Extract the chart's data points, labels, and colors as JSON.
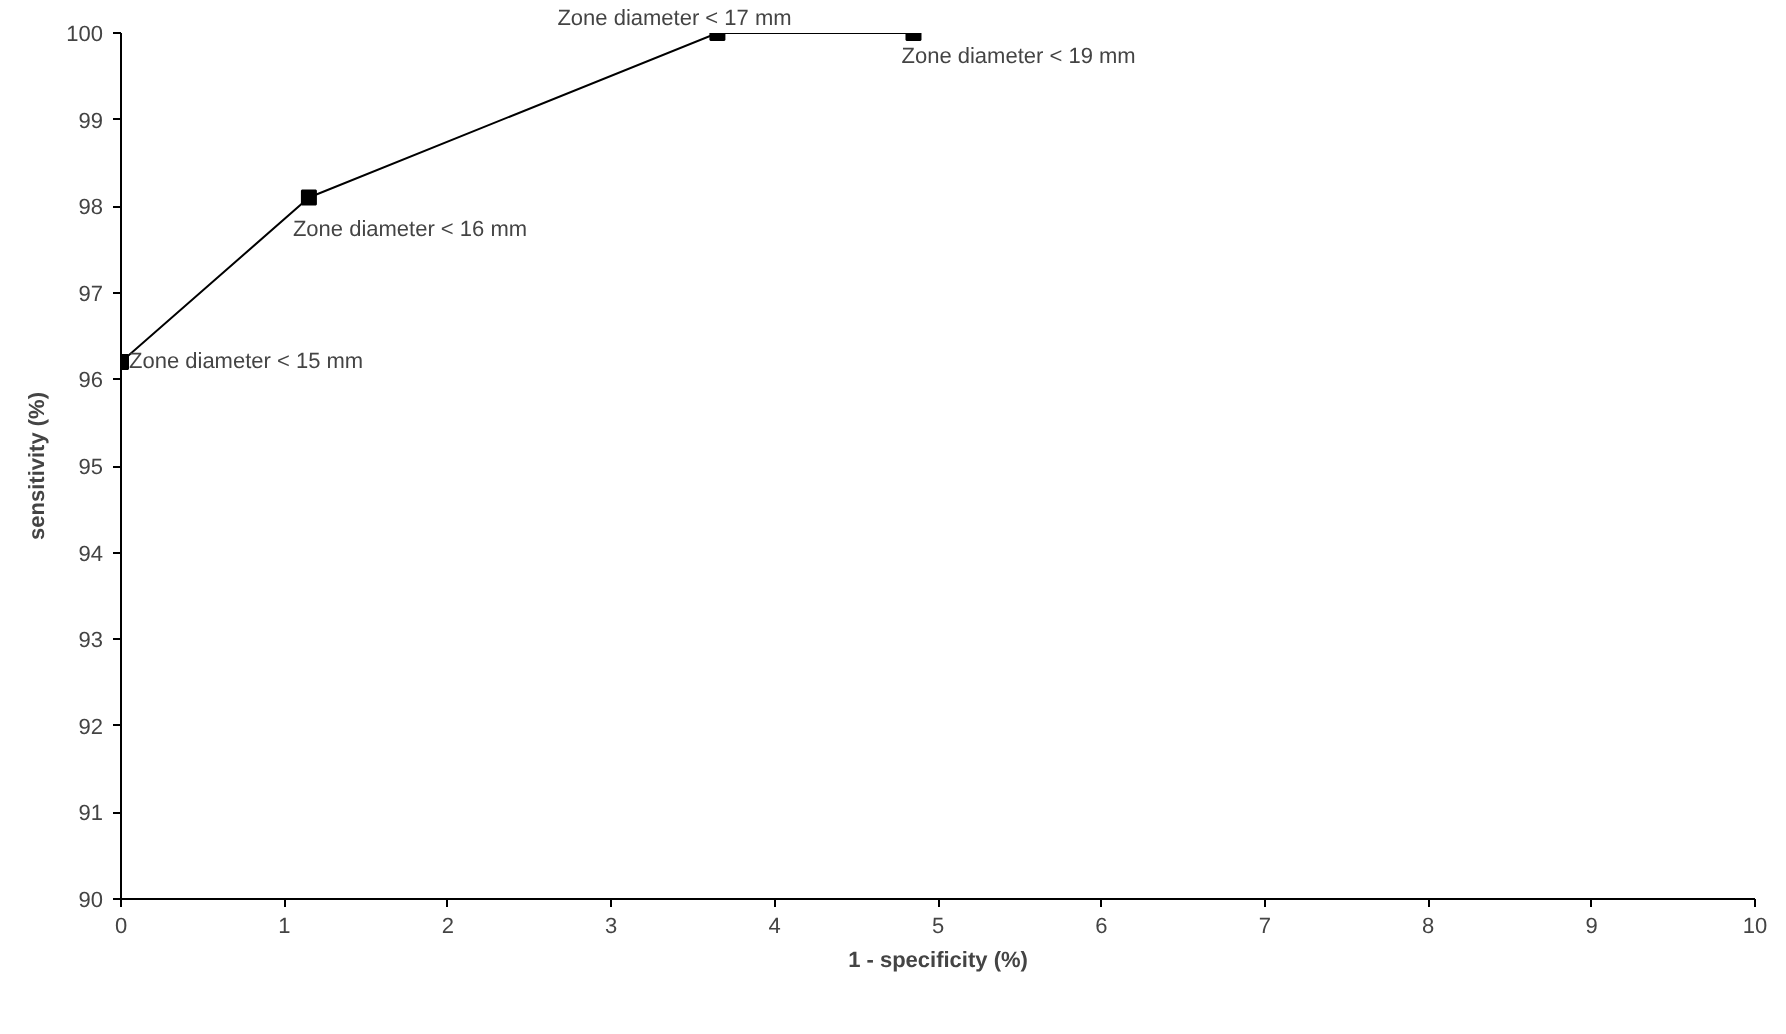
{
  "chart_data": {
    "type": "line",
    "xlabel": "1 - specificity (%)",
    "ylabel": "sensitivity (%)",
    "x": [
      0,
      1.15,
      3.65,
      4.85
    ],
    "series": [
      {
        "color": "#000000",
        "values": [
          96.2,
          98.1,
          100,
          100
        ]
      }
    ],
    "marker": "square",
    "line_style": "solid",
    "grid": false,
    "xlim": [
      0,
      10
    ],
    "ylim": [
      90,
      100
    ],
    "xticks": [
      0,
      1,
      2,
      3,
      4,
      5,
      6,
      7,
      8,
      9,
      10
    ],
    "yticks": [
      90,
      91,
      92,
      93,
      94,
      95,
      96,
      97,
      98,
      99,
      100
    ],
    "annotations": [
      {
        "text": "Zone diameter < 15 mm",
        "x": 0,
        "y": 96.2
      },
      {
        "text": "Zone diameter < 16 mm",
        "x": 1.15,
        "y": 98.1
      },
      {
        "text": "Zone diameter < 17 mm",
        "x": 3.65,
        "y": 100
      },
      {
        "text": "Zone diameter < 19 mm",
        "x": 4.85,
        "y": 100
      }
    ]
  }
}
